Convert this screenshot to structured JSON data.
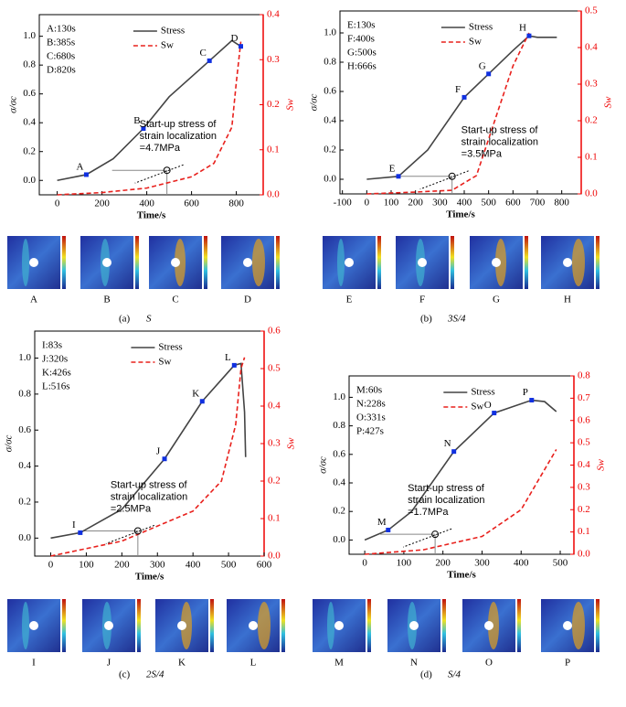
{
  "chart_data": [
    {
      "type": "line",
      "panel": "(a)",
      "caption": "S",
      "x_label": "Time/s",
      "y_label": "σ/σc",
      "y2_label": "Sw",
      "xlim": [
        -80,
        920
      ],
      "xticks": [
        0,
        200,
        400,
        600,
        800
      ],
      "ylim": [
        -0.1,
        1.15
      ],
      "yticks": [
        0.0,
        0.2,
        0.4,
        0.6,
        0.8,
        1.0
      ],
      "y2lim": [
        0,
        0.4
      ],
      "y2ticks": [
        0.0,
        0.1,
        0.2,
        0.3,
        0.4
      ],
      "series": [
        {
          "name": "Stress",
          "color": "#444444",
          "x": [
            0,
            130,
            250,
            385,
            500,
            680,
            780,
            820
          ],
          "values": [
            0,
            0.04,
            0.15,
            0.36,
            0.58,
            0.83,
            0.97,
            0.93
          ]
        },
        {
          "name": "Sw",
          "color": "#e8201c",
          "axis": "y2",
          "dashed": true,
          "x": [
            0,
            200,
            400,
            600,
            700,
            780,
            800,
            820
          ],
          "values": [
            0,
            0.005,
            0.015,
            0.04,
            0.07,
            0.15,
            0.25,
            0.34
          ]
        }
      ],
      "points": {
        "labels": [
          "A",
          "B",
          "C",
          "D"
        ],
        "x": [
          130,
          385,
          680,
          820
        ],
        "y": [
          0.04,
          0.36,
          0.83,
          0.93
        ]
      },
      "time_labels": [
        "A:130s",
        "B:385s",
        "C:680s",
        "D:820s"
      ],
      "annotation": [
        "Start-up stress of",
        "strain localization",
        "=4.7MPa"
      ],
      "startup_point": {
        "x": 490,
        "y": 0.07
      }
    },
    {
      "type": "line",
      "panel": "(b)",
      "caption": "3S/4",
      "x_label": "Time/s",
      "y_label": "σ/σc",
      "y2_label": "Sw",
      "xlim": [
        -110,
        880
      ],
      "xticks": [
        -100,
        0,
        100,
        200,
        300,
        400,
        500,
        600,
        700,
        800
      ],
      "ylim": [
        -0.1,
        1.15
      ],
      "yticks": [
        0.0,
        0.2,
        0.4,
        0.6,
        0.8,
        1.0
      ],
      "y2lim": [
        0,
        0.5
      ],
      "y2ticks": [
        0.0,
        0.1,
        0.2,
        0.3,
        0.4,
        0.5
      ],
      "series": [
        {
          "name": "Stress",
          "color": "#444444",
          "x": [
            0,
            130,
            250,
            400,
            500,
            600,
            666,
            700,
            780
          ],
          "values": [
            0,
            0.02,
            0.2,
            0.56,
            0.72,
            0.88,
            0.98,
            0.97,
            0.97
          ]
        },
        {
          "name": "Sw",
          "color": "#e8201c",
          "axis": "y2",
          "dashed": true,
          "x": [
            0,
            200,
            350,
            450,
            500,
            550,
            600,
            666
          ],
          "values": [
            0,
            0.005,
            0.01,
            0.05,
            0.15,
            0.25,
            0.35,
            0.44
          ]
        }
      ],
      "points": {
        "labels": [
          "E",
          "F",
          "G",
          "H"
        ],
        "x": [
          130,
          400,
          500,
          666
        ],
        "y": [
          0.02,
          0.56,
          0.72,
          0.98
        ]
      },
      "time_labels": [
        "E:130s",
        "F:400s",
        "G:500s",
        "H:666s"
      ],
      "annotation": [
        "Start-up stress of",
        "strain localization",
        "=3.5MPa"
      ],
      "startup_point": {
        "x": 350,
        "y": 0.02
      }
    },
    {
      "type": "line",
      "panel": "(c)",
      "caption": "2S/4",
      "x_label": "Time/s",
      "y_label": "σ/σc",
      "y2_label": "Sw",
      "xlim": [
        -45,
        600
      ],
      "xticks": [
        0,
        100,
        200,
        300,
        400,
        500,
        600
      ],
      "ylim": [
        -0.1,
        1.15
      ],
      "yticks": [
        0.0,
        0.2,
        0.4,
        0.6,
        0.8,
        1.0
      ],
      "y2lim": [
        0,
        0.6
      ],
      "y2ticks": [
        0.0,
        0.1,
        0.2,
        0.3,
        0.4,
        0.5,
        0.6
      ],
      "series": [
        {
          "name": "Stress",
          "color": "#444444",
          "x": [
            0,
            83,
            200,
            320,
            426,
            516,
            535,
            545,
            548
          ],
          "values": [
            0,
            0.03,
            0.16,
            0.44,
            0.76,
            0.96,
            0.97,
            0.7,
            0.45
          ]
        },
        {
          "name": "Sw",
          "color": "#e8201c",
          "axis": "y2",
          "dashed": true,
          "x": [
            0,
            200,
            400,
            480,
            520,
            535,
            545
          ],
          "values": [
            0,
            0.04,
            0.12,
            0.2,
            0.35,
            0.5,
            0.53
          ]
        }
      ],
      "points": {
        "labels": [
          "I",
          "J",
          "K",
          "L"
        ],
        "x": [
          83,
          320,
          426,
          516
        ],
        "y": [
          0.03,
          0.44,
          0.76,
          0.96
        ]
      },
      "time_labels": [
        "I:83s",
        "J:320s",
        "K:426s",
        "L:516s"
      ],
      "annotation": [
        "Start-up stress of",
        "strain localization",
        "=2.5MPa"
      ],
      "startup_point": {
        "x": 245,
        "y": 0.04
      }
    },
    {
      "type": "line",
      "panel": "(d)",
      "caption": "S/4",
      "x_label": "Time/s",
      "y_label": "σ/σc",
      "y2_label": "Sw",
      "xlim": [
        -40,
        535
      ],
      "xticks": [
        0,
        100,
        200,
        300,
        400,
        500
      ],
      "ylim": [
        -0.1,
        1.15
      ],
      "yticks": [
        0.0,
        0.2,
        0.4,
        0.6,
        0.8,
        1.0
      ],
      "y2lim": [
        0,
        0.8
      ],
      "y2ticks": [
        0.0,
        0.1,
        0.2,
        0.3,
        0.4,
        0.5,
        0.6,
        0.7,
        0.8
      ],
      "series": [
        {
          "name": "Stress",
          "color": "#444444",
          "x": [
            0,
            60,
            120,
            228,
            331,
            427,
            460,
            490
          ],
          "values": [
            0,
            0.07,
            0.2,
            0.62,
            0.89,
            0.98,
            0.97,
            0.9
          ]
        },
        {
          "name": "Sw",
          "color": "#e8201c",
          "axis": "y2",
          "dashed": true,
          "x": [
            0,
            150,
            300,
            400,
            450,
            490
          ],
          "values": [
            0,
            0.02,
            0.08,
            0.2,
            0.35,
            0.47
          ]
        }
      ],
      "points": {
        "labels": [
          "M",
          "N",
          "O",
          "P"
        ],
        "x": [
          60,
          228,
          331,
          427
        ],
        "y": [
          0.07,
          0.62,
          0.89,
          0.98
        ]
      },
      "time_labels": [
        "M:60s",
        "N:228s",
        "O:331s",
        "P:427s"
      ],
      "annotation": [
        "Start-up stress of",
        "strain localization",
        "=1.7MPa"
      ],
      "startup_point": {
        "x": 180,
        "y": 0.04
      }
    }
  ]
}
